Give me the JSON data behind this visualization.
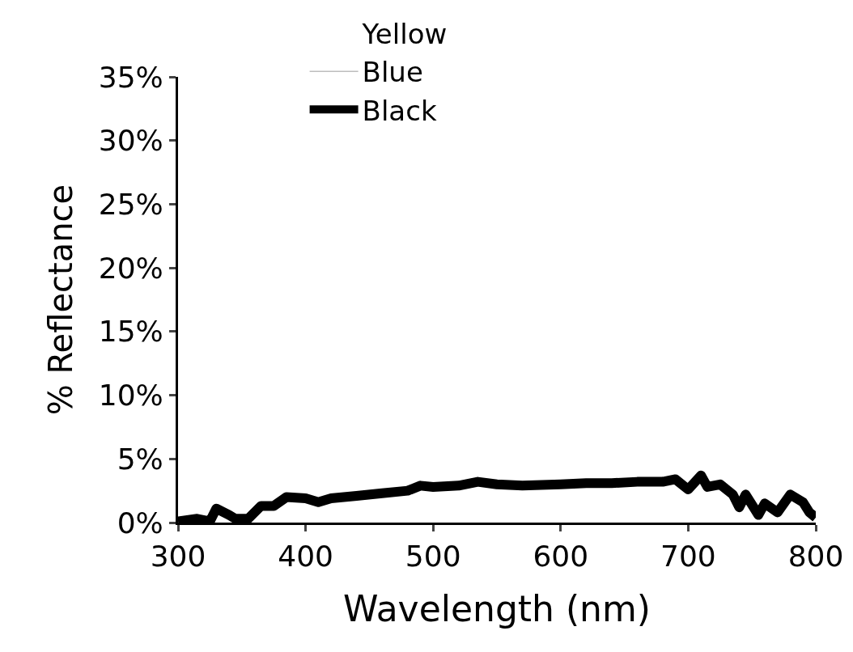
{
  "chart_data": {
    "type": "line",
    "xlabel": "Wavelength (nm)",
    "ylabel": "% Reflectance",
    "xlim": [
      300,
      800
    ],
    "xticks": [
      300,
      400,
      500,
      600,
      700,
      800
    ],
    "ylim": [
      0,
      35
    ],
    "yticks": [
      {
        "value": 0,
        "label": "0%"
      },
      {
        "value": 5,
        "label": "5%"
      },
      {
        "value": 10,
        "label": "10%"
      },
      {
        "value": 15,
        "label": "15%"
      },
      {
        "value": 20,
        "label": "20%"
      },
      {
        "value": 25,
        "label": "25%"
      },
      {
        "value": 30,
        "label": "30%"
      },
      {
        "value": 35,
        "label": "35%"
      }
    ],
    "x": [
      300,
      315,
      325,
      330,
      340,
      345,
      355,
      365,
      375,
      385,
      400,
      410,
      420,
      440,
      460,
      480,
      490,
      500,
      520,
      535,
      550,
      570,
      600,
      620,
      640,
      660,
      680,
      690,
      700,
      710,
      715,
      725,
      735,
      740,
      745,
      755,
      760,
      770,
      780,
      790,
      795,
      800
    ],
    "grid": false,
    "legend": "top",
    "marker": "none",
    "series": [
      {
        "name": "Yellow",
        "values": [
          null,
          null,
          null,
          null,
          null,
          null,
          null,
          null,
          null,
          null,
          null,
          null,
          null,
          null,
          null,
          null,
          null,
          null,
          null,
          null,
          null,
          null,
          null,
          null,
          null,
          null,
          null,
          null,
          null,
          null,
          null,
          null,
          null,
          null,
          null,
          null,
          null,
          null,
          null,
          null,
          null,
          null
        ]
      },
      {
        "name": "Blue",
        "color": "#bdbdbd",
        "values": [
          null,
          null,
          null,
          null,
          null,
          null,
          null,
          null,
          null,
          null,
          null,
          null,
          null,
          null,
          null,
          null,
          null,
          null,
          null,
          null,
          null,
          null,
          null,
          null,
          null,
          null,
          null,
          null,
          null,
          null,
          null,
          null,
          null,
          null,
          null,
          null,
          null,
          null,
          null,
          null,
          null,
          null
        ]
      },
      {
        "name": "Black",
        "color": "#000000",
        "values": [
          0.1,
          0.3,
          0.1,
          1.1,
          0.6,
          0.3,
          0.3,
          1.3,
          1.3,
          2.0,
          1.9,
          1.6,
          1.9,
          2.1,
          2.3,
          2.5,
          2.9,
          2.8,
          2.9,
          3.2,
          3.0,
          2.9,
          3.0,
          3.1,
          3.1,
          3.2,
          3.2,
          3.4,
          2.6,
          3.7,
          2.8,
          3.0,
          2.2,
          1.2,
          2.2,
          0.6,
          1.5,
          0.8,
          2.2,
          1.6,
          0.8,
          0.4
        ]
      }
    ]
  }
}
